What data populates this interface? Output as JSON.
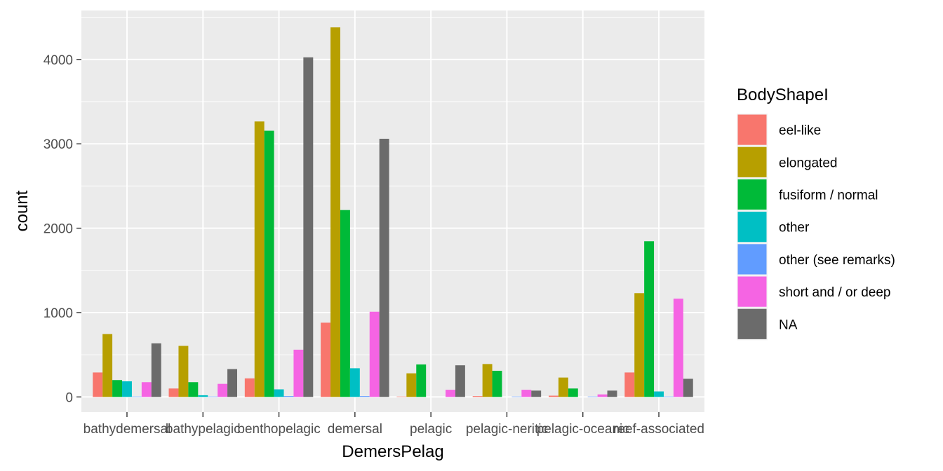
{
  "chart_data": {
    "type": "bar",
    "xlabel": "DemersPelag",
    "ylabel": "count",
    "categories": [
      "bathydemersal",
      "bathypelagic",
      "benthopelagic",
      "demersal",
      "pelagic",
      "pelagic-neritic",
      "pelagic-oceanic",
      "reef-associated"
    ],
    "ylim": [
      -180,
      4580
    ],
    "yticks": [
      0,
      1000,
      2000,
      3000,
      4000
    ],
    "ytick_labels": [
      "0",
      "1000",
      "2000",
      "3000",
      "4000"
    ],
    "grid": true,
    "legend": {
      "title": "BodyShapeI",
      "placement": "right"
    },
    "series": [
      {
        "name": "eel-like",
        "color": "#F8766D",
        "values": [
          290,
          100,
          220,
          880,
          5,
          10,
          15,
          290
        ]
      },
      {
        "name": "elongated",
        "color": "#B79F00",
        "values": [
          745,
          605,
          3265,
          4380,
          280,
          390,
          230,
          1230
        ]
      },
      {
        "name": "fusiform / normal",
        "color": "#00BA38",
        "values": [
          200,
          175,
          3155,
          2215,
          385,
          310,
          100,
          1845
        ]
      },
      {
        "name": "other",
        "color": "#00BFC4",
        "values": [
          185,
          20,
          90,
          340,
          0,
          0,
          0,
          65
        ]
      },
      {
        "name": "other (see remarks)",
        "color": "#619CFF",
        "values": [
          5,
          5,
          10,
          10,
          0,
          5,
          5,
          5
        ]
      },
      {
        "name": "short and / or deep",
        "color": "#F564E3",
        "values": [
          175,
          155,
          560,
          1010,
          85,
          85,
          30,
          1165
        ]
      },
      {
        "name": "NA",
        "color": "#6B6B6B",
        "values": [
          635,
          330,
          4025,
          3060,
          375,
          75,
          75,
          215
        ]
      }
    ]
  }
}
